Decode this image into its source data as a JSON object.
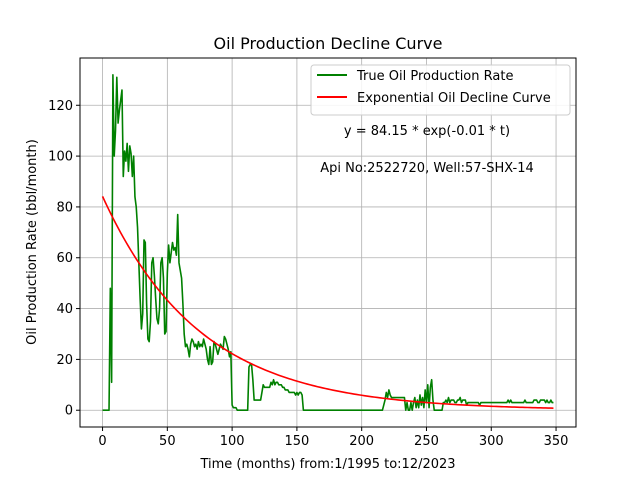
{
  "chart_data": {
    "type": "line",
    "title": "Oil Production Decline Curve",
    "xlabel": "Time (months) from:1/1995 to:12/2023",
    "ylabel": "Oil Production Rate (bbl/month)",
    "xlim": [
      -17.4,
      365.4
    ],
    "ylim": [
      -6.6,
      138.6
    ],
    "xticks": [
      0,
      50,
      100,
      150,
      200,
      250,
      300,
      350
    ],
    "yticks": [
      0,
      20,
      40,
      60,
      80,
      100,
      120
    ],
    "grid": true,
    "legend_position": "upper-right",
    "annotations": [
      "y = 84.15 * exp(-0.01 * t)",
      "Api No:2522720, Well:57-SHX-14"
    ],
    "series": [
      {
        "name": "True Oil Production Rate",
        "color": "#008000",
        "kind": "observed",
        "points": [
          [
            0,
            0
          ],
          [
            1,
            0
          ],
          [
            2,
            0
          ],
          [
            3,
            0
          ],
          [
            4,
            0
          ],
          [
            5,
            0
          ],
          [
            6,
            48
          ],
          [
            7,
            11
          ],
          [
            8,
            132
          ],
          [
            9,
            100
          ],
          [
            10,
            110
          ],
          [
            11,
            131
          ],
          [
            12,
            113
          ],
          [
            13,
            118
          ],
          [
            14,
            122
          ],
          [
            15,
            126
          ],
          [
            16,
            92
          ],
          [
            17,
            102
          ],
          [
            18,
            98
          ],
          [
            19,
            105
          ],
          [
            20,
            94
          ],
          [
            21,
            104
          ],
          [
            22,
            101
          ],
          [
            23,
            92
          ],
          [
            24,
            100
          ],
          [
            25,
            84
          ],
          [
            26,
            80
          ],
          [
            27,
            72
          ],
          [
            28,
            58
          ],
          [
            29,
            44
          ],
          [
            30,
            32
          ],
          [
            31,
            38
          ],
          [
            32,
            67
          ],
          [
            33,
            66
          ],
          [
            34,
            42
          ],
          [
            35,
            28
          ],
          [
            36,
            27
          ],
          [
            37,
            35
          ],
          [
            38,
            58
          ],
          [
            39,
            60
          ],
          [
            40,
            53
          ],
          [
            41,
            44
          ],
          [
            42,
            36
          ],
          [
            43,
            34
          ],
          [
            44,
            40
          ],
          [
            45,
            58
          ],
          [
            46,
            60
          ],
          [
            47,
            52
          ],
          [
            48,
            30
          ],
          [
            49,
            31
          ],
          [
            50,
            54
          ],
          [
            51,
            65
          ],
          [
            52,
            58
          ],
          [
            53,
            62
          ],
          [
            54,
            66
          ],
          [
            55,
            63
          ],
          [
            56,
            64
          ],
          [
            57,
            61
          ],
          [
            58,
            77
          ],
          [
            59,
            58
          ],
          [
            60,
            55
          ],
          [
            61,
            52
          ],
          [
            62,
            42
          ],
          [
            63,
            30
          ],
          [
            64,
            25
          ],
          [
            65,
            26
          ],
          [
            66,
            24
          ],
          [
            67,
            21
          ],
          [
            68,
            26
          ],
          [
            69,
            28
          ],
          [
            70,
            27
          ],
          [
            71,
            25
          ],
          [
            72,
            26
          ],
          [
            73,
            24
          ],
          [
            74,
            27
          ],
          [
            75,
            25
          ],
          [
            76,
            26
          ],
          [
            77,
            25
          ],
          [
            78,
            28
          ],
          [
            79,
            26
          ],
          [
            80,
            24
          ],
          [
            81,
            20
          ],
          [
            82,
            18
          ],
          [
            83,
            25
          ],
          [
            84,
            18
          ],
          [
            85,
            19
          ],
          [
            86,
            27
          ],
          [
            87,
            26
          ],
          [
            88,
            24
          ],
          [
            89,
            22
          ],
          [
            90,
            24
          ],
          [
            91,
            26
          ],
          [
            92,
            25
          ],
          [
            93,
            24
          ],
          [
            94,
            29
          ],
          [
            95,
            28
          ],
          [
            96,
            26
          ],
          [
            97,
            24
          ],
          [
            98,
            21
          ],
          [
            99,
            23
          ],
          [
            100,
            2
          ],
          [
            101,
            1
          ],
          [
            102,
            1
          ],
          [
            103,
            1
          ],
          [
            104,
            0
          ],
          [
            105,
            0
          ],
          [
            106,
            0
          ],
          [
            107,
            0
          ],
          [
            108,
            0
          ],
          [
            109,
            0
          ],
          [
            110,
            0
          ],
          [
            111,
            0
          ],
          [
            112,
            0
          ],
          [
            113,
            17
          ],
          [
            114,
            18
          ],
          [
            115,
            18
          ],
          [
            116,
            12
          ],
          [
            117,
            4
          ],
          [
            118,
            4
          ],
          [
            119,
            4
          ],
          [
            120,
            4
          ],
          [
            121,
            4
          ],
          [
            122,
            4
          ],
          [
            123,
            7
          ],
          [
            124,
            10
          ],
          [
            125,
            9
          ],
          [
            126,
            9
          ],
          [
            127,
            9
          ],
          [
            128,
            9
          ],
          [
            129,
            9
          ],
          [
            130,
            11
          ],
          [
            131,
            10
          ],
          [
            132,
            12
          ],
          [
            133,
            10
          ],
          [
            134,
            11
          ],
          [
            135,
            11
          ],
          [
            136,
            10
          ],
          [
            137,
            10
          ],
          [
            138,
            10
          ],
          [
            139,
            9
          ],
          [
            140,
            9
          ],
          [
            141,
            8
          ],
          [
            142,
            8
          ],
          [
            143,
            8
          ],
          [
            144,
            7
          ],
          [
            145,
            7
          ],
          [
            146,
            7
          ],
          [
            147,
            7
          ],
          [
            148,
            7
          ],
          [
            149,
            6
          ],
          [
            150,
            7
          ],
          [
            151,
            6
          ],
          [
            152,
            7
          ],
          [
            153,
            7
          ],
          [
            154,
            6
          ],
          [
            155,
            0
          ],
          [
            160,
            0
          ],
          [
            170,
            0
          ],
          [
            180,
            0
          ],
          [
            190,
            0
          ],
          [
            200,
            0
          ],
          [
            210,
            0
          ],
          [
            215,
            0
          ],
          [
            216,
            0
          ],
          [
            217,
            2
          ],
          [
            218,
            4
          ],
          [
            219,
            7
          ],
          [
            220,
            5
          ],
          [
            221,
            8
          ],
          [
            222,
            6
          ],
          [
            223,
            5
          ],
          [
            224,
            5
          ],
          [
            225,
            5
          ],
          [
            226,
            5
          ],
          [
            227,
            5
          ],
          [
            228,
            5
          ],
          [
            229,
            5
          ],
          [
            230,
            5
          ],
          [
            231,
            5
          ],
          [
            232,
            5
          ],
          [
            233,
            5
          ],
          [
            234,
            0
          ],
          [
            235,
            3
          ],
          [
            236,
            0
          ],
          [
            237,
            0
          ],
          [
            238,
            3
          ],
          [
            239,
            0
          ],
          [
            240,
            3
          ],
          [
            241,
            5
          ],
          [
            242,
            1
          ],
          [
            243,
            4
          ],
          [
            244,
            1
          ],
          [
            245,
            6
          ],
          [
            246,
            2
          ],
          [
            247,
            5
          ],
          [
            248,
            1
          ],
          [
            249,
            8
          ],
          [
            250,
            3
          ],
          [
            251,
            10
          ],
          [
            252,
            1
          ],
          [
            253,
            9
          ],
          [
            254,
            12
          ],
          [
            255,
            4
          ],
          [
            256,
            0
          ],
          [
            257,
            0
          ],
          [
            258,
            0
          ],
          [
            259,
            0
          ],
          [
            260,
            0
          ],
          [
            261,
            0
          ],
          [
            262,
            0
          ],
          [
            263,
            3
          ],
          [
            264,
            3
          ],
          [
            265,
            4
          ],
          [
            266,
            3
          ],
          [
            267,
            5
          ],
          [
            268,
            3
          ],
          [
            269,
            4
          ],
          [
            270,
            4
          ],
          [
            271,
            4
          ],
          [
            272,
            3
          ],
          [
            273,
            3
          ],
          [
            274,
            4
          ],
          [
            275,
            4
          ],
          [
            276,
            5
          ],
          [
            277,
            3
          ],
          [
            278,
            4
          ],
          [
            279,
            4
          ],
          [
            280,
            4
          ],
          [
            281,
            2
          ],
          [
            282,
            3
          ],
          [
            283,
            3
          ],
          [
            284,
            3
          ],
          [
            285,
            3
          ],
          [
            286,
            3
          ],
          [
            287,
            3
          ],
          [
            288,
            3
          ],
          [
            289,
            3
          ],
          [
            290,
            3
          ],
          [
            291,
            2
          ],
          [
            292,
            3
          ],
          [
            293,
            3
          ],
          [
            294,
            3
          ],
          [
            295,
            3
          ],
          [
            296,
            3
          ],
          [
            297,
            3
          ],
          [
            298,
            3
          ],
          [
            299,
            3
          ],
          [
            300,
            3
          ],
          [
            301,
            3
          ],
          [
            302,
            3
          ],
          [
            303,
            3
          ],
          [
            304,
            3
          ],
          [
            305,
            3
          ],
          [
            306,
            3
          ],
          [
            307,
            3
          ],
          [
            308,
            3
          ],
          [
            309,
            3
          ],
          [
            310,
            3
          ],
          [
            311,
            3
          ],
          [
            312,
            3
          ],
          [
            313,
            4
          ],
          [
            314,
            3
          ],
          [
            315,
            4
          ],
          [
            316,
            3
          ],
          [
            317,
            3
          ],
          [
            318,
            3
          ],
          [
            319,
            3
          ],
          [
            320,
            3
          ],
          [
            321,
            3
          ],
          [
            322,
            3
          ],
          [
            323,
            3
          ],
          [
            324,
            3
          ],
          [
            325,
            3
          ],
          [
            326,
            4
          ],
          [
            327,
            3
          ],
          [
            328,
            3
          ],
          [
            329,
            3
          ],
          [
            330,
            3
          ],
          [
            331,
            3
          ],
          [
            332,
            3
          ],
          [
            333,
            4
          ],
          [
            334,
            4
          ],
          [
            335,
            4
          ],
          [
            336,
            3
          ],
          [
            337,
            3
          ],
          [
            338,
            4
          ],
          [
            339,
            4
          ],
          [
            340,
            4
          ],
          [
            341,
            4
          ],
          [
            342,
            3
          ],
          [
            343,
            4
          ],
          [
            344,
            3
          ],
          [
            345,
            3
          ],
          [
            346,
            4
          ],
          [
            347,
            3
          ],
          [
            348,
            3
          ]
        ]
      },
      {
        "name": "Exponential Oil Decline Curve",
        "color": "#ff0000",
        "kind": "fit",
        "function": {
          "a": 84.15,
          "b": 0.0133
        },
        "x_range": [
          0,
          348
        ]
      }
    ]
  }
}
